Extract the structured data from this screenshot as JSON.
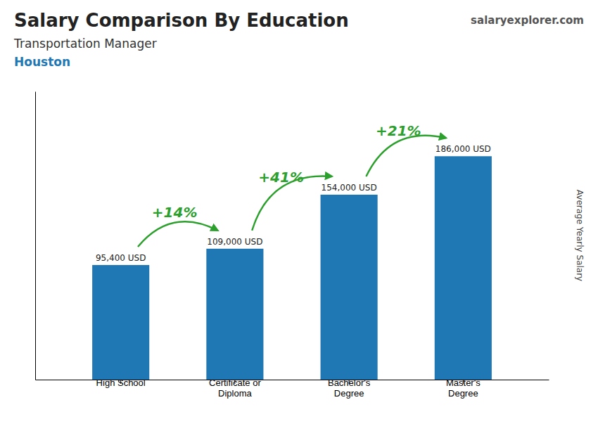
{
  "chart_data": {
    "type": "bar",
    "title": "Salary Comparison By Education",
    "subtitle": "Transportation Manager",
    "location": "Houston",
    "source": "salaryexplorer.com",
    "y_label": "Average Yearly Salary",
    "categories": [
      "High School",
      "Certificate or\nDiploma",
      "Bachelor's\nDegree",
      "Master's\nDegree"
    ],
    "values": [
      95400,
      109000,
      154000,
      186000
    ],
    "value_labels": [
      "95,400 USD",
      "109,000 USD",
      "154,000 USD",
      "186,000 USD"
    ],
    "data_labels": true,
    "annotations": [
      "+14%",
      "+41%",
      "+21%"
    ],
    "ylim": [
      0,
      240000
    ],
    "tick_labels": "x",
    "grid": false
  }
}
